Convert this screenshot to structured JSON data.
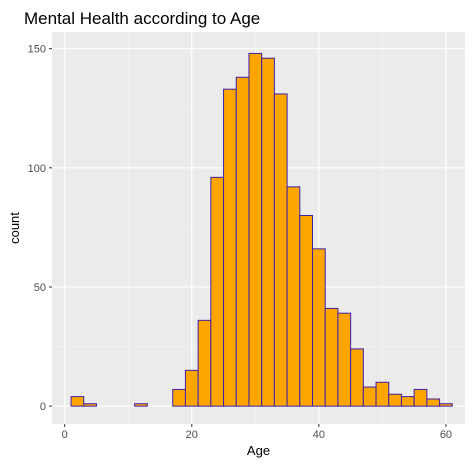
{
  "chart_data": {
    "type": "bar",
    "title": "Mental Health according to Age",
    "xlabel": "Age",
    "ylabel": "count",
    "xlim": [
      -2,
      63
    ],
    "ylim": [
      -7.5,
      157
    ],
    "x_ticks": [
      0,
      20,
      40,
      60
    ],
    "y_ticks": [
      0,
      50,
      100,
      150
    ],
    "x_tick_labels": [
      "0",
      "20",
      "40",
      "60"
    ],
    "y_tick_labels": [
      "0",
      "50",
      "100",
      "150"
    ],
    "grid": true,
    "bin_width": 2,
    "bins": [
      {
        "x0": 1,
        "x1": 3,
        "count": 4
      },
      {
        "x0": 3,
        "x1": 5,
        "count": 1
      },
      {
        "x0": 5,
        "x1": 7,
        "count": 0
      },
      {
        "x0": 7,
        "x1": 9,
        "count": 0
      },
      {
        "x0": 9,
        "x1": 11,
        "count": 0
      },
      {
        "x0": 11,
        "x1": 13,
        "count": 1
      },
      {
        "x0": 13,
        "x1": 15,
        "count": 0
      },
      {
        "x0": 15,
        "x1": 17,
        "count": 0
      },
      {
        "x0": 17,
        "x1": 19,
        "count": 7
      },
      {
        "x0": 19,
        "x1": 21,
        "count": 15
      },
      {
        "x0": 21,
        "x1": 23,
        "count": 36
      },
      {
        "x0": 23,
        "x1": 25,
        "count": 96
      },
      {
        "x0": 25,
        "x1": 27,
        "count": 133
      },
      {
        "x0": 27,
        "x1": 29,
        "count": 138
      },
      {
        "x0": 29,
        "x1": 31,
        "count": 148
      },
      {
        "x0": 31,
        "x1": 33,
        "count": 146
      },
      {
        "x0": 33,
        "x1": 35,
        "count": 131
      },
      {
        "x0": 35,
        "x1": 37,
        "count": 92
      },
      {
        "x0": 37,
        "x1": 39,
        "count": 80
      },
      {
        "x0": 39,
        "x1": 41,
        "count": 66
      },
      {
        "x0": 41,
        "x1": 43,
        "count": 41
      },
      {
        "x0": 43,
        "x1": 45,
        "count": 39
      },
      {
        "x0": 45,
        "x1": 47,
        "count": 24
      },
      {
        "x0": 47,
        "x1": 49,
        "count": 8
      },
      {
        "x0": 49,
        "x1": 51,
        "count": 10
      },
      {
        "x0": 51,
        "x1": 53,
        "count": 5
      },
      {
        "x0": 53,
        "x1": 55,
        "count": 4
      },
      {
        "x0": 55,
        "x1": 57,
        "count": 7
      },
      {
        "x0": 57,
        "x1": 59,
        "count": 3
      },
      {
        "x0": 59,
        "x1": 61,
        "count": 1
      }
    ],
    "colors": {
      "bar_fill": "#FFA500",
      "bar_stroke": "#3F1FA8",
      "panel_background": "#EBEBEB",
      "grid_major": "#FFFFFF",
      "grid_minor": "#F5F5F5",
      "tick_text": "#4D4D4D",
      "tick_mark": "#333333"
    }
  }
}
